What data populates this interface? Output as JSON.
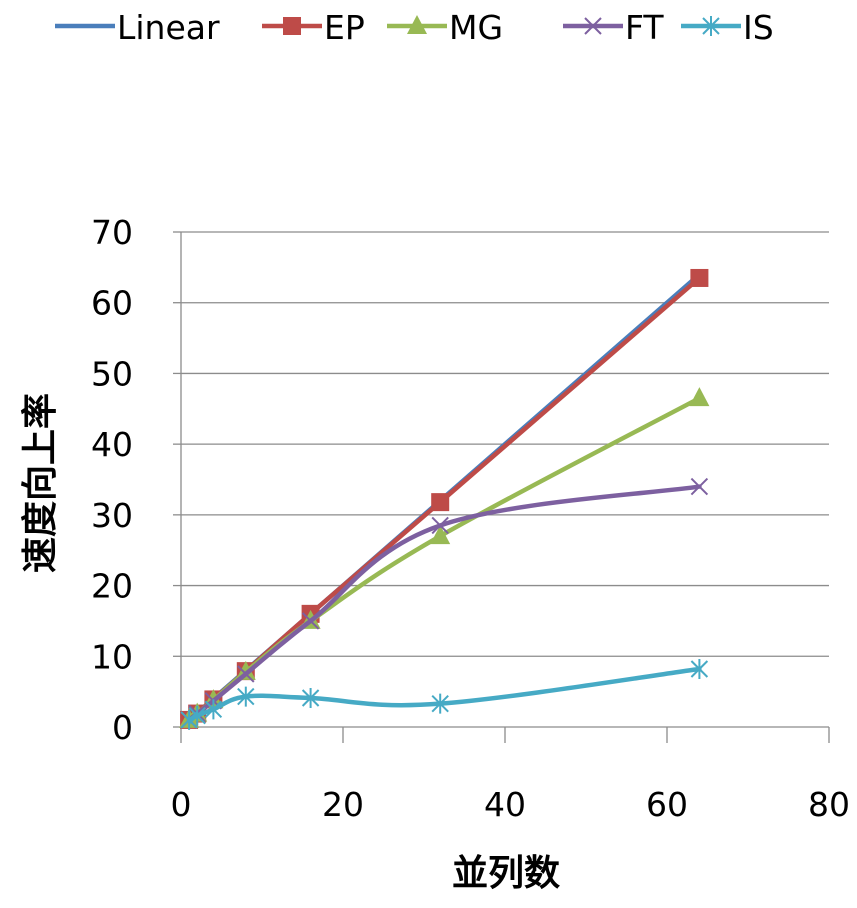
{
  "chart_data": {
    "type": "line",
    "xlabel": "並列数",
    "ylabel": "速度向上率",
    "xlim": [
      0,
      80
    ],
    "ylim": [
      0,
      70
    ],
    "xticks": [
      0,
      20,
      40,
      60,
      80
    ],
    "yticks": [
      0,
      10,
      20,
      30,
      40,
      50,
      60,
      70
    ],
    "grid": "horizontal",
    "legend_position": "top",
    "series": [
      {
        "name": "Linear",
        "color": "#4a7ebb",
        "marker": "none",
        "x": [
          1,
          2,
          4,
          8,
          16,
          32,
          64
        ],
        "y": [
          1,
          2,
          4,
          8,
          16,
          32,
          64
        ]
      },
      {
        "name": "EP",
        "color": "#be4b48",
        "marker": "square",
        "x": [
          1,
          2,
          4,
          8,
          16,
          32,
          64
        ],
        "y": [
          1,
          1.9,
          3.9,
          7.9,
          16,
          31.8,
          63.5
        ]
      },
      {
        "name": "MG",
        "color": "#98b954",
        "marker": "triangle",
        "x": [
          1,
          2,
          4,
          8,
          16,
          32,
          64
        ],
        "y": [
          1,
          1.9,
          3.8,
          7.8,
          15,
          27,
          46.5
        ]
      },
      {
        "name": "FT",
        "color": "#7d60a0",
        "marker": "x",
        "x": [
          1,
          2,
          4,
          8,
          16,
          32,
          64
        ],
        "y": [
          1,
          1.9,
          3.7,
          7.5,
          15,
          28.5,
          34
        ]
      },
      {
        "name": "IS",
        "color": "#46aac5",
        "marker": "star",
        "x": [
          1,
          2,
          4,
          8,
          16,
          32,
          64
        ],
        "y": [
          1,
          1.6,
          2.5,
          4.3,
          4.1,
          3.3,
          8.2
        ]
      }
    ]
  }
}
